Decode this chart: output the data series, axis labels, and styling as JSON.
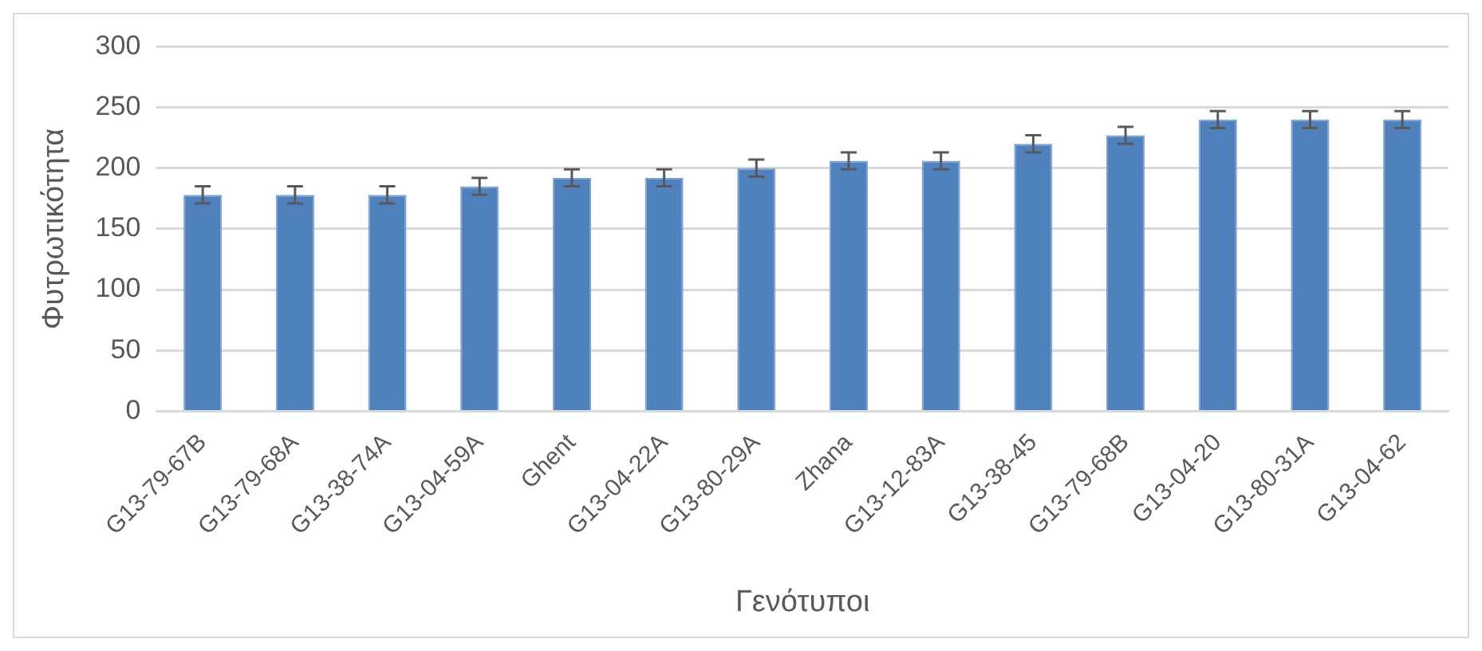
{
  "chart_data": {
    "type": "bar",
    "xlabel": "Γενότυποι",
    "ylabel": "Φυτρωτικότητα",
    "categories": [
      "G13-79-67B",
      "G13-79-68A",
      "G13-38-74A",
      "G13-04-59A",
      "Ghent",
      "G13-04-22A",
      "G13-80-29A",
      "Zhana",
      "G13-12-83A",
      "G13-38-45",
      "G13-79-68B",
      "G13-04-20",
      "G13-80-31A",
      "G13-04-62"
    ],
    "values": [
      178,
      178,
      178,
      185,
      192,
      192,
      200,
      206,
      206,
      220,
      227,
      240,
      240,
      240
    ],
    "errors": [
      7,
      7,
      7,
      7,
      7,
      7,
      7,
      7,
      7,
      7,
      7,
      7,
      7,
      7
    ],
    "color": "#4f81bd",
    "ylim": [
      0,
      300
    ],
    "yticks": [
      0,
      50,
      100,
      150,
      200,
      250,
      300
    ],
    "grid": "y",
    "legend": false
  }
}
